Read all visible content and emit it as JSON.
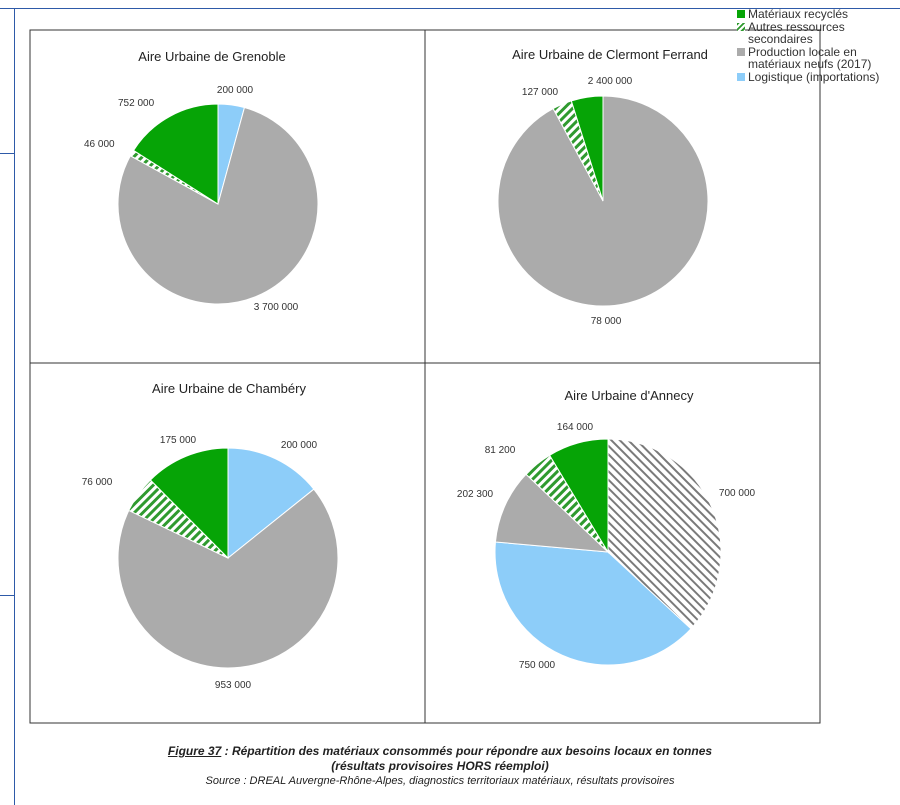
{
  "colors": {
    "recycled": "#06a406",
    "secondary": "#2f9a2f",
    "local": "#ababab",
    "logistics": "#8dcdf9",
    "imports_hatch": "#7a7a7a"
  },
  "legend": [
    {
      "key": "recycled",
      "label": "Matériaux recyclés"
    },
    {
      "key": "secondary",
      "label": "Autres ressources secondaires"
    },
    {
      "key": "local",
      "label": "Production locale en matériaux neufs (2017)"
    },
    {
      "key": "logistics",
      "label": "Logistique (importations)"
    }
  ],
  "chart_data": [
    {
      "type": "pie",
      "title": "Aire Urbaine de Grenoble",
      "slices": [
        {
          "series": "logistics",
          "value": 200000,
          "label": "200 000",
          "pattern": "solid"
        },
        {
          "series": "local",
          "value": 3700000,
          "label": "3 700 000",
          "pattern": "solid"
        },
        {
          "series": "secondary",
          "value": 46000,
          "label": "46 000",
          "pattern": "hatch"
        },
        {
          "series": "recycled",
          "value": 752000,
          "label": "752 000",
          "pattern": "solid"
        }
      ]
    },
    {
      "type": "pie",
      "title": "Aire Urbaine de Clermont Ferrand",
      "slices": [
        {
          "series": "local",
          "value": 2400000,
          "label": "2 400 000",
          "pattern": "solid"
        },
        {
          "series": "secondary",
          "value": 78000,
          "label": "78 000",
          "pattern": "hatch"
        },
        {
          "series": "recycled",
          "value": 127000,
          "label": "127 000",
          "pattern": "solid"
        }
      ]
    },
    {
      "type": "pie",
      "title": "Aire Urbaine de Chambéry",
      "slices": [
        {
          "series": "logistics",
          "value": 200000,
          "label": "200 000",
          "pattern": "solid"
        },
        {
          "series": "local",
          "value": 953000,
          "label": "953 000",
          "pattern": "solid"
        },
        {
          "series": "secondary",
          "value": 76000,
          "label": "76 000",
          "pattern": "hatch"
        },
        {
          "series": "recycled",
          "value": 175000,
          "label": "175 000",
          "pattern": "solid"
        }
      ]
    },
    {
      "type": "pie",
      "title": "Aire Urbaine d'Annecy",
      "slices": [
        {
          "series": "imports_hatch",
          "value": 700000,
          "label": "700 000",
          "pattern": "hatch"
        },
        {
          "series": "logistics",
          "value": 750000,
          "label": "750 000",
          "pattern": "solid"
        },
        {
          "series": "local",
          "value": 202300,
          "label": "202 300",
          "pattern": "solid"
        },
        {
          "series": "secondary",
          "value": 81200,
          "label": "81 200",
          "pattern": "hatch"
        },
        {
          "series": "recycled",
          "value": 164000,
          "label": "164 000",
          "pattern": "solid"
        }
      ]
    }
  ],
  "caption": {
    "figure_ref": "Figure 37",
    "line1": " : Répartition des matériaux consommés pour répondre aux besoins locaux en tonnes",
    "line2": "(résultats provisoires HORS réemploi)",
    "source": "Source : DREAL Auvergne-Rhône-Alpes,  diagnostics territoriaux matériaux, résultats provisoires"
  }
}
